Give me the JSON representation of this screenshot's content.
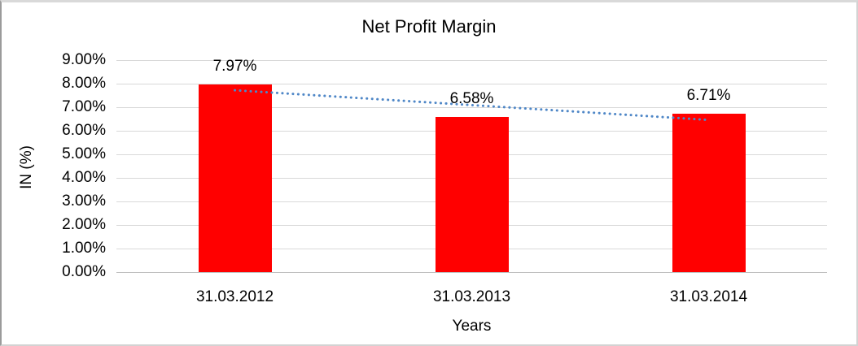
{
  "frame": {
    "background": "#FFFFFF",
    "border_top_color": "#D9D9D9",
    "border_left_color": "#9B9B9B",
    "border_right_color": "#D3D3D3",
    "border_bottom_color": "#D3D3D3"
  },
  "chart_data": {
    "type": "bar",
    "title": "Net Profit Margin",
    "categories": [
      "31.03.2012",
      "31.03.2013",
      "31.03.2014"
    ],
    "values": [
      7.97,
      6.58,
      6.71
    ],
    "data_labels": [
      "7.97%",
      "6.58%",
      "6.71%"
    ],
    "xlabel": "Years",
    "ylabel": "IN (%)",
    "ylim": [
      0,
      9
    ],
    "y_tick_labels": [
      "0.00%",
      "1.00%",
      "2.00%",
      "3.00%",
      "4.00%",
      "5.00%",
      "6.00%",
      "7.00%",
      "8.00%",
      "9.00%"
    ],
    "grid": true,
    "legend": "none",
    "bar_color": "#FF0000",
    "text_color": "#000000",
    "gridline_color": "#D9D9D9",
    "axis_line_color": "#C0C0C0",
    "trendline": {
      "type": "linear",
      "style": "dotted",
      "color": "#4F87C7",
      "start_value": 7.72,
      "end_value": 6.46
    }
  }
}
